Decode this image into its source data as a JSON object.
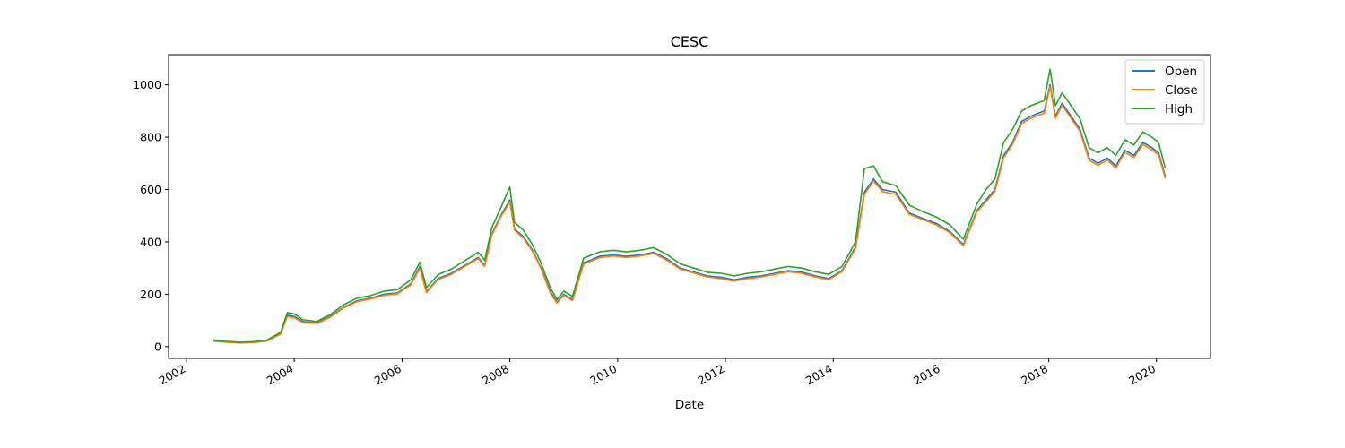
{
  "chart_data": {
    "type": "line",
    "title": "CESC",
    "xlabel": "Date",
    "ylabel": "",
    "xlim": [
      "2001-09-01",
      "2021-01-01"
    ],
    "ylim": [
      -45,
      1115
    ],
    "grid": false,
    "legend_position": "top-right",
    "x_ticks": [
      "2002",
      "2004",
      "2006",
      "2008",
      "2010",
      "2012",
      "2014",
      "2016",
      "2018",
      "2020"
    ],
    "y_ticks": [
      0,
      200,
      400,
      600,
      800,
      1000
    ],
    "x": [
      "2002-07-01",
      "2002-10-01",
      "2003-01-01",
      "2003-04-01",
      "2003-07-01",
      "2003-10-01",
      "2003-11-15",
      "2004-01-01",
      "2004-03-01",
      "2004-06-01",
      "2004-09-01",
      "2004-12-01",
      "2005-03-01",
      "2005-06-01",
      "2005-09-01",
      "2005-12-01",
      "2006-03-01",
      "2006-05-01",
      "2006-06-15",
      "2006-09-01",
      "2006-12-01",
      "2007-03-01",
      "2007-06-01",
      "2007-07-15",
      "2007-09-01",
      "2007-11-01",
      "2008-01-01",
      "2008-02-01",
      "2008-04-01",
      "2008-06-01",
      "2008-08-01",
      "2008-10-01",
      "2008-11-15",
      "2009-01-01",
      "2009-03-01",
      "2009-05-15",
      "2009-07-01",
      "2009-09-01",
      "2009-12-01",
      "2010-03-01",
      "2010-06-01",
      "2010-09-01",
      "2010-12-01",
      "2011-03-01",
      "2011-06-01",
      "2011-09-01",
      "2011-12-01",
      "2012-03-01",
      "2012-06-01",
      "2012-09-01",
      "2012-12-01",
      "2013-03-01",
      "2013-06-01",
      "2013-09-01",
      "2013-12-01",
      "2014-03-01",
      "2014-06-01",
      "2014-08-01",
      "2014-10-01",
      "2014-12-01",
      "2015-03-01",
      "2015-06-01",
      "2015-09-01",
      "2015-12-01",
      "2016-03-01",
      "2016-06-01",
      "2016-09-01",
      "2016-11-01",
      "2017-01-01",
      "2017-03-01",
      "2017-05-01",
      "2017-07-01",
      "2017-09-01",
      "2017-12-01",
      "2018-01-10",
      "2018-02-15",
      "2018-04-01",
      "2018-06-01",
      "2018-08-01",
      "2018-10-01",
      "2018-12-01",
      "2019-02-01",
      "2019-04-01",
      "2019-06-01",
      "2019-08-01",
      "2019-10-01",
      "2019-12-01",
      "2020-01-15",
      "2020-03-01"
    ],
    "series": [
      {
        "name": "Open",
        "color": "#1f77b4",
        "values": [
          22,
          18,
          15,
          17,
          22,
          50,
          120,
          115,
          95,
          90,
          115,
          150,
          175,
          185,
          200,
          205,
          240,
          305,
          210,
          260,
          280,
          310,
          340,
          310,
          430,
          500,
          560,
          450,
          420,
          370,
          300,
          210,
          170,
          200,
          180,
          320,
          330,
          345,
          350,
          345,
          350,
          360,
          335,
          300,
          285,
          270,
          265,
          255,
          265,
          270,
          280,
          290,
          285,
          270,
          260,
          290,
          380,
          590,
          640,
          600,
          590,
          510,
          490,
          470,
          440,
          390,
          520,
          560,
          600,
          730,
          780,
          860,
          880,
          900,
          1000,
          880,
          930,
          880,
          830,
          720,
          700,
          720,
          690,
          750,
          730,
          780,
          760,
          740,
          650
        ]
      },
      {
        "name": "Close",
        "color": "#ff7f0e",
        "values": [
          21,
          17,
          14,
          16,
          21,
          48,
          115,
          110,
          92,
          88,
          112,
          148,
          172,
          182,
          196,
          202,
          236,
          298,
          206,
          256,
          276,
          306,
          336,
          306,
          425,
          495,
          552,
          445,
          415,
          365,
          296,
          205,
          166,
          196,
          176,
          315,
          326,
          340,
          346,
          340,
          346,
          356,
          330,
          296,
          281,
          266,
          260,
          250,
          260,
          266,
          276,
          286,
          280,
          266,
          256,
          286,
          375,
          582,
          632,
          592,
          582,
          505,
          485,
          465,
          435,
          385,
          515,
          553,
          592,
          722,
          772,
          852,
          872,
          892,
          992,
          872,
          922,
          872,
          822,
          712,
          692,
          712,
          682,
          742,
          722,
          772,
          752,
          732,
          642
        ]
      },
      {
        "name": "High",
        "color": "#2ca02c",
        "values": [
          24,
          20,
          17,
          19,
          25,
          55,
          130,
          125,
          102,
          96,
          122,
          160,
          185,
          195,
          212,
          218,
          255,
          322,
          225,
          275,
          296,
          328,
          360,
          330,
          455,
          530,
          610,
          475,
          445,
          390,
          318,
          225,
          180,
          212,
          192,
          338,
          348,
          362,
          368,
          362,
          368,
          378,
          352,
          316,
          300,
          284,
          280,
          270,
          280,
          286,
          296,
          306,
          300,
          286,
          276,
          306,
          400,
          680,
          690,
          630,
          615,
          540,
          515,
          495,
          465,
          410,
          545,
          600,
          640,
          780,
          830,
          900,
          920,
          940,
          1060,
          920,
          970,
          920,
          870,
          760,
          740,
          760,
          730,
          790,
          770,
          820,
          800,
          780,
          680
        ]
      }
    ]
  }
}
